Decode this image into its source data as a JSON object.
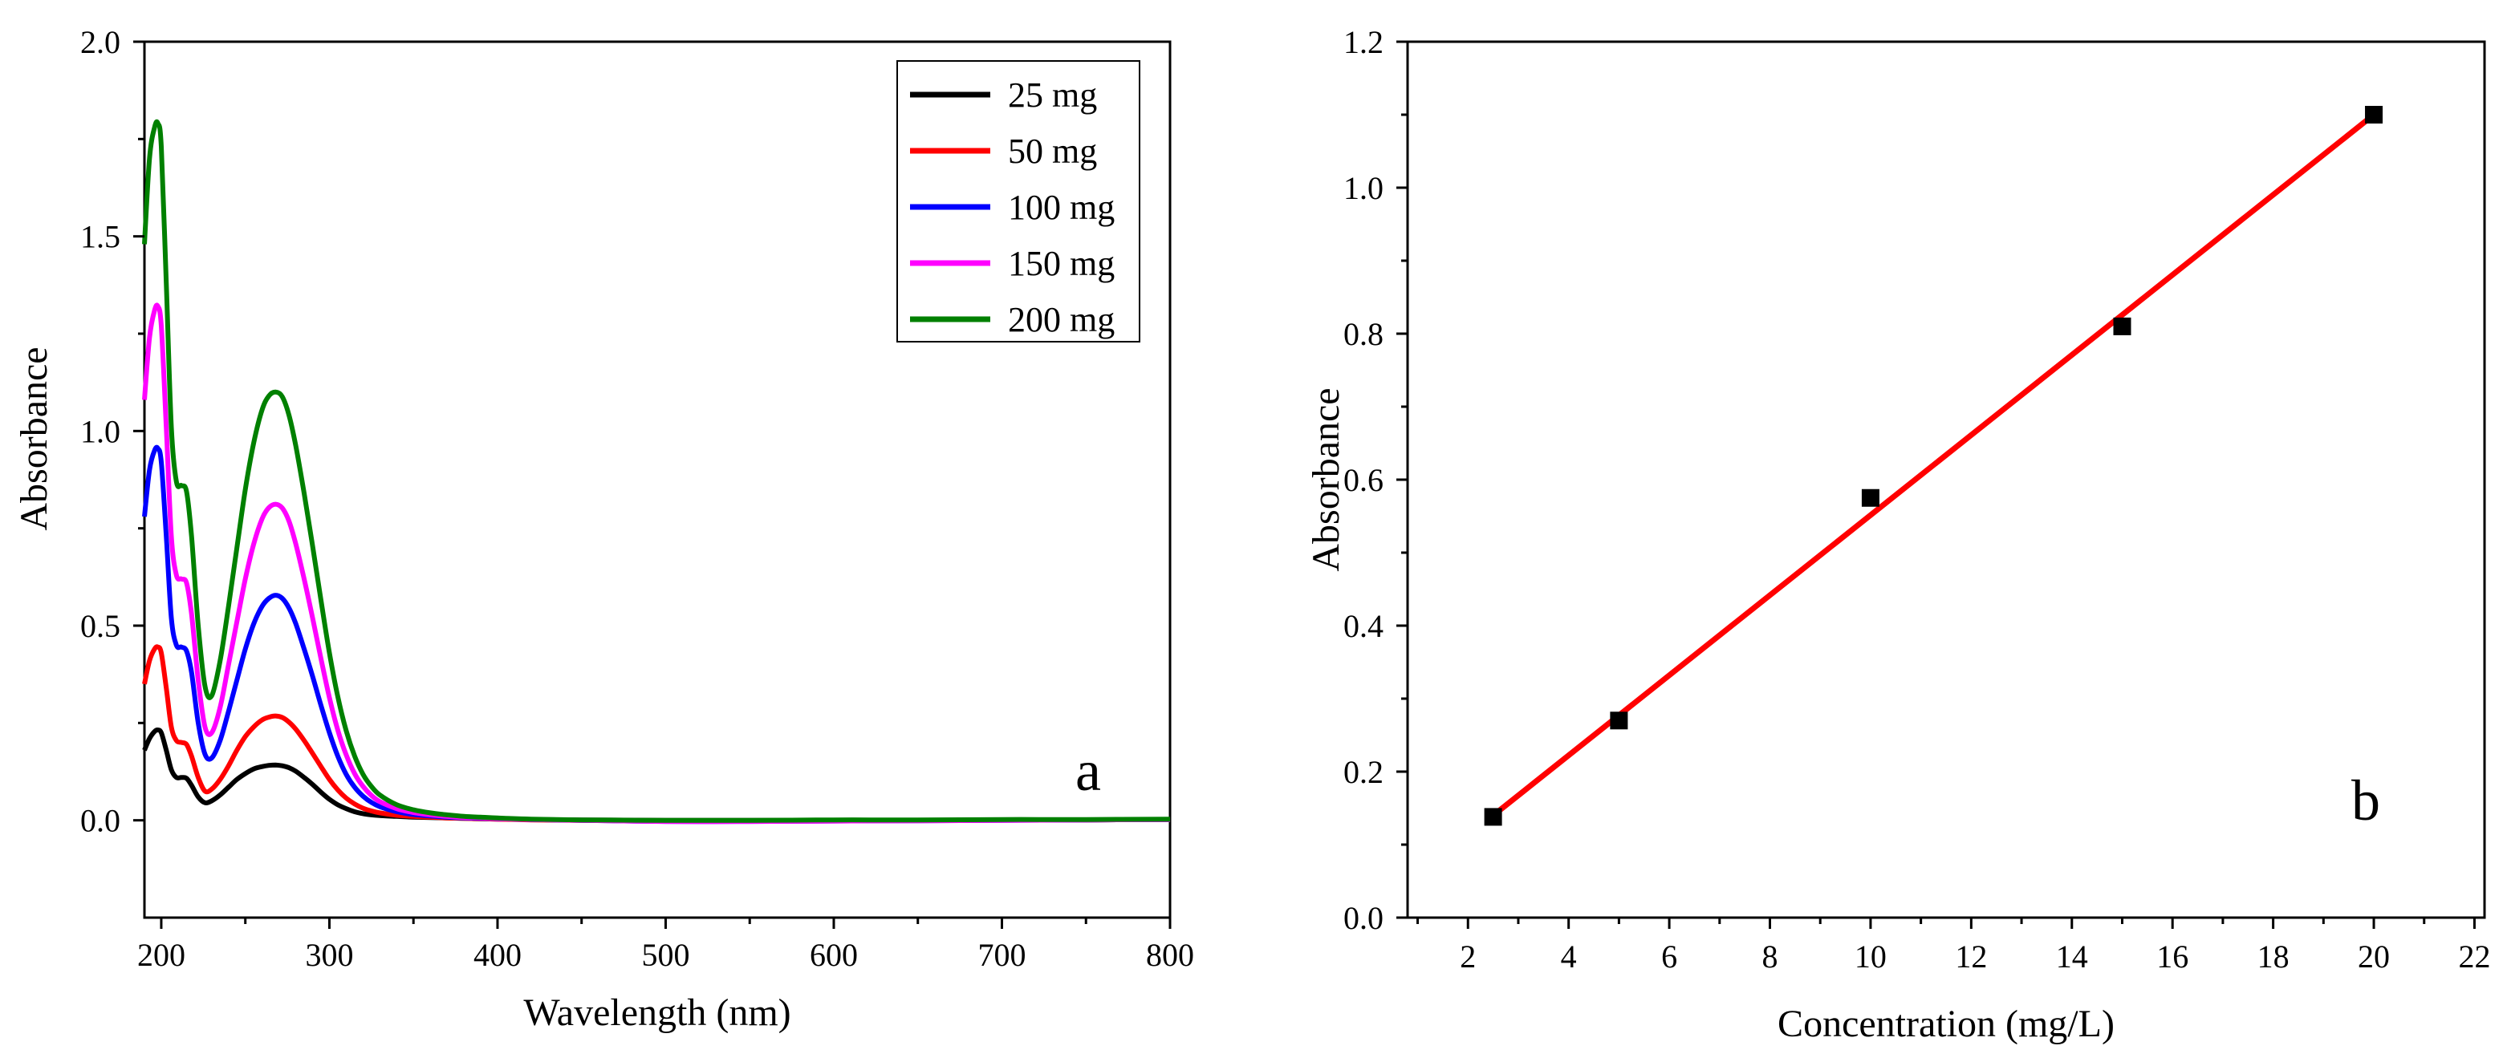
{
  "chart_data": [
    {
      "type": "line",
      "panel_label": "a",
      "xlabel": "Wavelength (nm)",
      "ylabel": "Absorbance",
      "xlim": [
        190,
        800
      ],
      "ylim": [
        -0.25,
        2.0
      ],
      "xticks": [
        200,
        300,
        400,
        500,
        600,
        700,
        800
      ],
      "yticks": [
        0.0,
        0.5,
        1.0,
        1.5,
        2.0
      ],
      "legend_position": "top-right",
      "x": [
        190,
        193,
        196,
        198,
        200,
        203,
        206,
        209,
        212,
        215,
        218,
        222,
        226,
        230,
        235,
        240,
        245,
        250,
        255,
        260,
        264,
        268,
        272,
        276,
        280,
        285,
        290,
        295,
        300,
        305,
        310,
        315,
        320,
        325,
        330,
        340,
        350,
        360,
        370,
        380,
        390,
        400,
        420,
        450,
        500,
        550,
        600,
        650,
        700,
        750,
        800
      ],
      "series": [
        {
          "name": "25 mg",
          "color": "#000000",
          "values": [
            0.18,
            0.21,
            0.228,
            0.232,
            0.225,
            0.18,
            0.13,
            0.11,
            0.11,
            0.108,
            0.09,
            0.06,
            0.045,
            0.05,
            0.065,
            0.085,
            0.105,
            0.12,
            0.132,
            0.138,
            0.141,
            0.142,
            0.14,
            0.135,
            0.126,
            0.11,
            0.092,
            0.072,
            0.054,
            0.04,
            0.03,
            0.022,
            0.017,
            0.014,
            0.012,
            0.01,
            0.008,
            0.007,
            0.006,
            0.005,
            0.004,
            0.003,
            0.002,
            0.001,
            0.0,
            0.0,
            0.0,
            0.0,
            0.001,
            0.001,
            0.002
          ]
        },
        {
          "name": "50 mg",
          "color": "#ff0000",
          "values": [
            0.35,
            0.41,
            0.44,
            0.445,
            0.43,
            0.34,
            0.24,
            0.205,
            0.2,
            0.195,
            0.165,
            0.11,
            0.075,
            0.08,
            0.105,
            0.14,
            0.18,
            0.215,
            0.24,
            0.258,
            0.265,
            0.268,
            0.264,
            0.252,
            0.234,
            0.205,
            0.172,
            0.138,
            0.105,
            0.078,
            0.057,
            0.042,
            0.031,
            0.024,
            0.019,
            0.013,
            0.01,
            0.008,
            0.006,
            0.005,
            0.004,
            0.003,
            0.001,
            0.0,
            -0.002,
            -0.001,
            -0.001,
            0.0,
            0.001,
            0.001,
            0.002
          ]
        },
        {
          "name": "100 mg",
          "color": "#0000ff",
          "values": [
            0.78,
            0.9,
            0.95,
            0.955,
            0.92,
            0.73,
            0.52,
            0.45,
            0.445,
            0.435,
            0.38,
            0.25,
            0.17,
            0.16,
            0.205,
            0.28,
            0.36,
            0.44,
            0.505,
            0.55,
            0.57,
            0.578,
            0.57,
            0.545,
            0.505,
            0.44,
            0.37,
            0.295,
            0.225,
            0.165,
            0.118,
            0.085,
            0.062,
            0.046,
            0.035,
            0.022,
            0.015,
            0.011,
            0.008,
            0.006,
            0.005,
            0.004,
            0.002,
            0.0,
            -0.003,
            -0.003,
            -0.002,
            -0.001,
            0.0,
            0.001,
            0.002
          ]
        },
        {
          "name": "150 mg",
          "color": "#ff00ff",
          "values": [
            1.08,
            1.24,
            1.31,
            1.32,
            1.27,
            1.01,
            0.73,
            0.63,
            0.62,
            0.61,
            0.53,
            0.36,
            0.24,
            0.225,
            0.29,
            0.4,
            0.51,
            0.62,
            0.71,
            0.775,
            0.803,
            0.812,
            0.802,
            0.768,
            0.71,
            0.62,
            0.52,
            0.415,
            0.315,
            0.232,
            0.168,
            0.12,
            0.087,
            0.064,
            0.048,
            0.03,
            0.02,
            0.014,
            0.01,
            0.007,
            0.006,
            0.004,
            0.002,
            0.0,
            -0.003,
            -0.003,
            -0.002,
            -0.001,
            0.0,
            0.001,
            0.002
          ]
        },
        {
          "name": "200 mg",
          "color": "#008000",
          "values": [
            1.48,
            1.7,
            1.78,
            1.79,
            1.73,
            1.38,
            1.01,
            0.87,
            0.86,
            0.845,
            0.73,
            0.5,
            0.345,
            0.32,
            0.41,
            0.55,
            0.7,
            0.85,
            0.97,
            1.055,
            1.09,
            1.1,
            1.088,
            1.04,
            0.962,
            0.84,
            0.705,
            0.565,
            0.43,
            0.318,
            0.23,
            0.165,
            0.118,
            0.087,
            0.065,
            0.04,
            0.027,
            0.019,
            0.014,
            0.01,
            0.008,
            0.006,
            0.003,
            0.001,
            0.0,
            0.0,
            0.001,
            0.001,
            0.002,
            0.002,
            0.003
          ]
        }
      ]
    },
    {
      "type": "scatter",
      "panel_label": "b",
      "xlabel": "Concentration (mg/L)",
      "ylabel": "Absorbance",
      "xlim": [
        0.8,
        22.2
      ],
      "ylim": [
        0.0,
        1.2
      ],
      "xticks": [
        2,
        4,
        6,
        8,
        10,
        12,
        14,
        16,
        18,
        20,
        22
      ],
      "yticks": [
        0.0,
        0.2,
        0.4,
        0.6,
        0.8,
        1.0,
        1.2
      ],
      "points": {
        "x": [
          2.5,
          5,
          10,
          15,
          20
        ],
        "y": [
          0.138,
          0.27,
          0.575,
          0.81,
          1.1
        ]
      },
      "fit_line": {
        "x": [
          2.5,
          20
        ],
        "y": [
          0.14,
          1.1
        ],
        "color": "#ff0000"
      }
    }
  ]
}
